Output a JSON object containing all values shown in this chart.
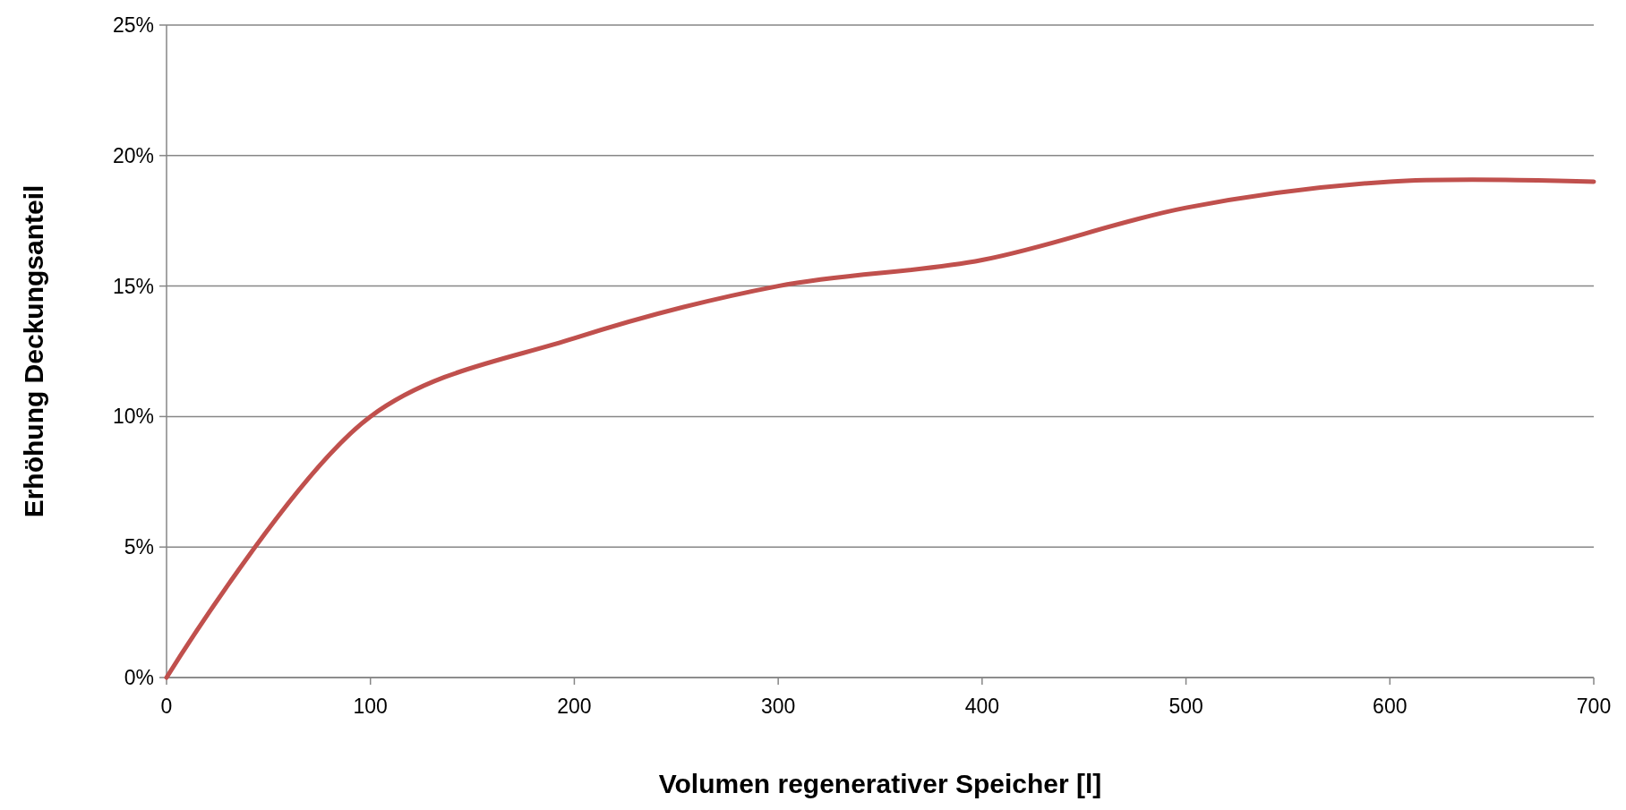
{
  "chart_data": {
    "type": "line",
    "xlabel": "Volumen regenerativer Speicher [l]",
    "ylabel": "Erhöhung Deckungsanteil",
    "x": [
      0,
      100,
      200,
      300,
      400,
      500,
      600,
      700
    ],
    "series": [
      {
        "color": "#c0504d",
        "values": [
          0,
          10,
          13,
          15,
          16,
          18,
          19,
          19
        ]
      }
    ],
    "xlim": [
      0,
      700
    ],
    "xticks": [
      0,
      100,
      200,
      300,
      400,
      500,
      600,
      700
    ],
    "ylim": [
      0,
      25
    ],
    "yticks": [
      {
        "value": 0,
        "label": "0%"
      },
      {
        "value": 5,
        "label": "5%"
      },
      {
        "value": 10,
        "label": "10%"
      },
      {
        "value": 15,
        "label": "15%"
      },
      {
        "value": 20,
        "label": "20%"
      },
      {
        "value": 25,
        "label": "25%"
      }
    ],
    "grid": "y",
    "marker": "none",
    "line_style": "solid"
  }
}
